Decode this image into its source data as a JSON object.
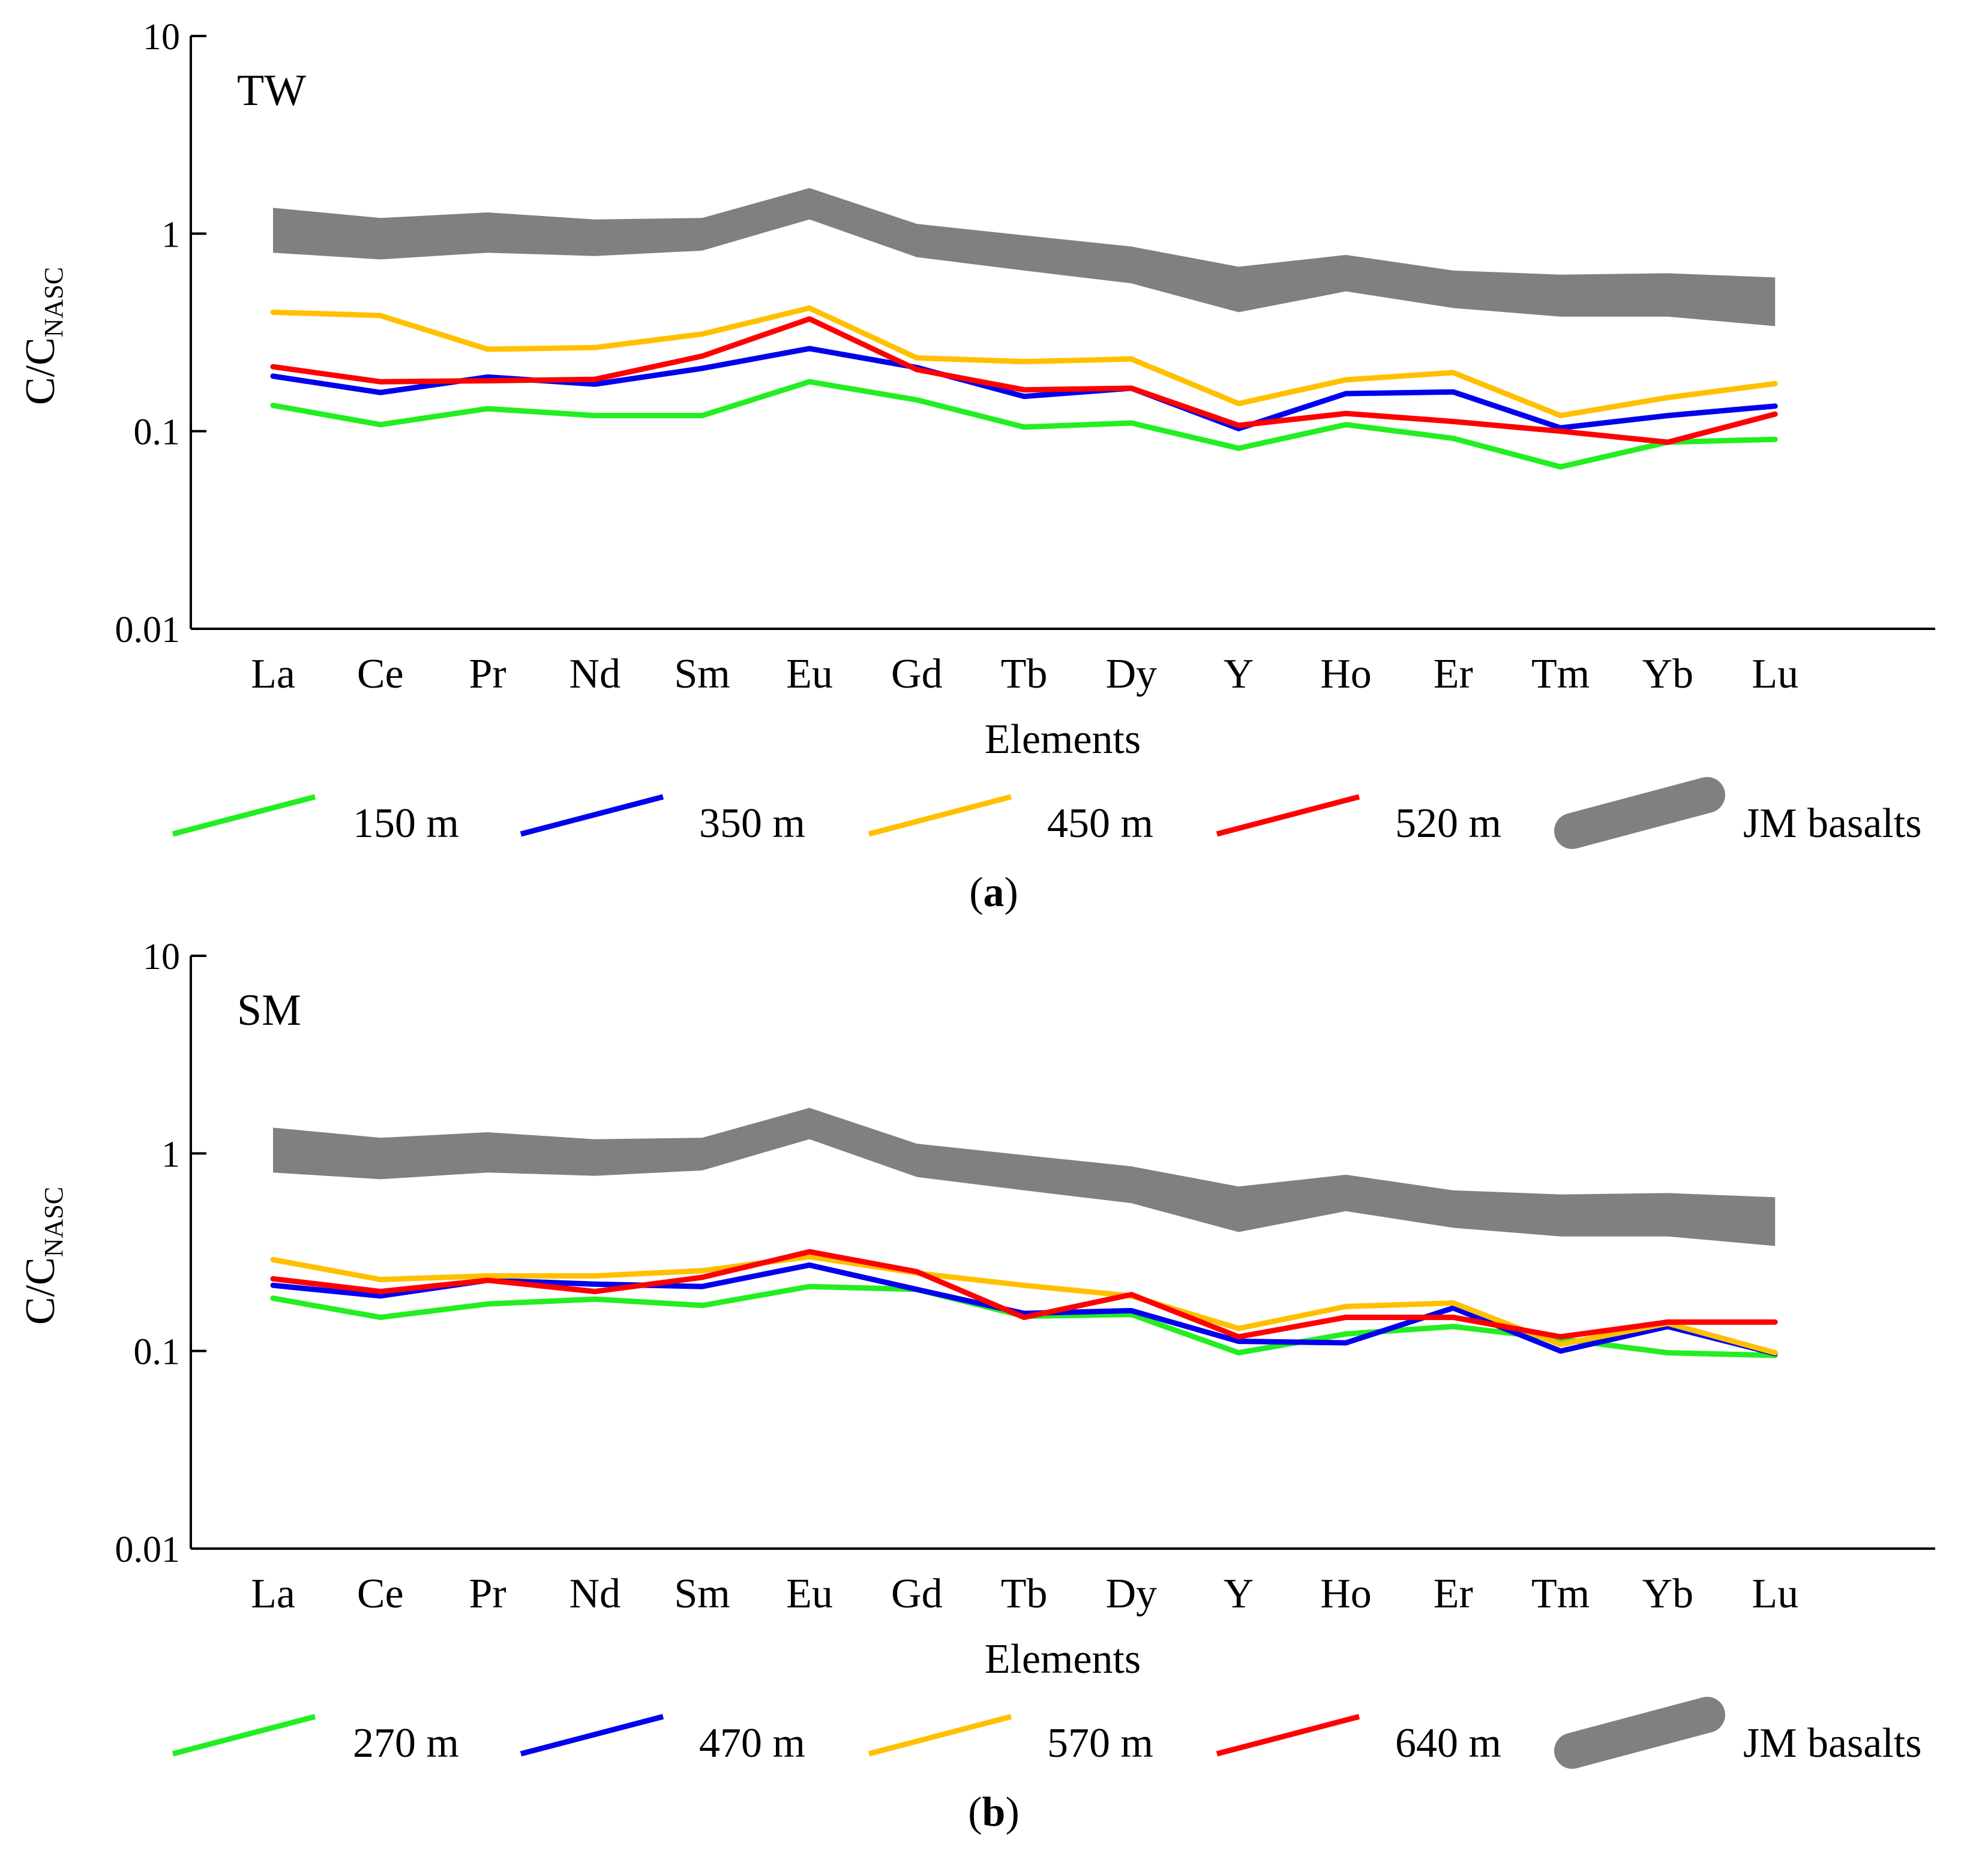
{
  "chart_data": [
    {
      "type": "line",
      "y_scale": "log",
      "panel_label": "TW",
      "caption_letter": "a",
      "xlabel": "Elements",
      "ylabel_main": "C/C",
      "ylabel_sub": "NASC",
      "ylim": [
        0.01,
        10
      ],
      "y_ticks": [
        {
          "value": 10,
          "label": "10"
        },
        {
          "value": 1,
          "label": "1"
        },
        {
          "value": 0.1,
          "label": "0.1"
        },
        {
          "value": 0.01,
          "label": "0.01"
        }
      ],
      "categories": [
        "La",
        "Ce",
        "Pr",
        "Nd",
        "Sm",
        "Eu",
        "Gd",
        "Tb",
        "Dy",
        "Y",
        "Ho",
        "Er",
        "Tm",
        "Yb",
        "Lu"
      ],
      "band": {
        "name": "JM basalts",
        "color": "#808080",
        "upper": [
          1.35,
          1.2,
          1.28,
          1.18,
          1.2,
          1.7,
          1.12,
          0.98,
          0.86,
          0.68,
          0.78,
          0.65,
          0.62,
          0.63,
          0.6
        ],
        "lower": [
          0.8,
          0.74,
          0.8,
          0.77,
          0.82,
          1.18,
          0.76,
          0.65,
          0.56,
          0.4,
          0.51,
          0.42,
          0.38,
          0.38,
          0.34
        ]
      },
      "series": [
        {
          "name": "150 m",
          "color": "#22ee22",
          "values": [
            0.135,
            0.108,
            0.13,
            0.12,
            0.12,
            0.178,
            0.144,
            0.105,
            0.11,
            0.082,
            0.108,
            0.092,
            0.066,
            0.088,
            0.091
          ]
        },
        {
          "name": "350 m",
          "color": "#0000ee",
          "values": [
            0.19,
            0.157,
            0.188,
            0.173,
            0.208,
            0.262,
            0.21,
            0.15,
            0.165,
            0.103,
            0.155,
            0.158,
            0.104,
            0.12,
            0.134
          ]
        },
        {
          "name": "450 m",
          "color": "#ffc000",
          "values": [
            0.4,
            0.385,
            0.26,
            0.265,
            0.31,
            0.42,
            0.235,
            0.225,
            0.232,
            0.138,
            0.182,
            0.198,
            0.12,
            0.148,
            0.174
          ]
        },
        {
          "name": "520 m",
          "color": "#ff0000",
          "values": [
            0.212,
            0.178,
            0.18,
            0.183,
            0.24,
            0.37,
            0.205,
            0.162,
            0.165,
            0.107,
            0.123,
            0.112,
            0.1,
            0.088,
            0.122
          ]
        }
      ]
    },
    {
      "type": "line",
      "y_scale": "log",
      "panel_label": "SM",
      "caption_letter": "b",
      "xlabel": "Elements",
      "ylabel_main": "C/C",
      "ylabel_sub": "NASC",
      "ylim": [
        0.01,
        10
      ],
      "y_ticks": [
        {
          "value": 10,
          "label": "10"
        },
        {
          "value": 1,
          "label": "1"
        },
        {
          "value": 0.1,
          "label": "0.1"
        },
        {
          "value": 0.01,
          "label": "0.01"
        }
      ],
      "categories": [
        "La",
        "Ce",
        "Pr",
        "Nd",
        "Sm",
        "Eu",
        "Gd",
        "Tb",
        "Dy",
        "Y",
        "Ho",
        "Er",
        "Tm",
        "Yb",
        "Lu"
      ],
      "band": {
        "name": "JM basalts",
        "color": "#808080",
        "upper": [
          1.35,
          1.2,
          1.28,
          1.18,
          1.2,
          1.7,
          1.12,
          0.98,
          0.86,
          0.68,
          0.78,
          0.65,
          0.62,
          0.63,
          0.6
        ],
        "lower": [
          0.8,
          0.74,
          0.8,
          0.77,
          0.82,
          1.18,
          0.76,
          0.65,
          0.56,
          0.4,
          0.51,
          0.42,
          0.38,
          0.38,
          0.34
        ]
      },
      "series": [
        {
          "name": "270 m",
          "color": "#22ee22",
          "values": [
            0.185,
            0.148,
            0.173,
            0.183,
            0.17,
            0.212,
            0.205,
            0.15,
            0.153,
            0.098,
            0.122,
            0.133,
            0.115,
            0.098,
            0.095
          ]
        },
        {
          "name": "470 m",
          "color": "#0000ee",
          "values": [
            0.215,
            0.19,
            0.228,
            0.218,
            0.212,
            0.272,
            0.205,
            0.155,
            0.16,
            0.112,
            0.11,
            0.165,
            0.1,
            0.133,
            0.097
          ]
        },
        {
          "name": "570 m",
          "color": "#ffc000",
          "values": [
            0.29,
            0.23,
            0.24,
            0.24,
            0.255,
            0.3,
            0.248,
            0.215,
            0.19,
            0.13,
            0.168,
            0.175,
            0.108,
            0.138,
            0.098
          ]
        },
        {
          "name": "640 m",
          "color": "#ff0000",
          "values": [
            0.232,
            0.2,
            0.228,
            0.2,
            0.236,
            0.318,
            0.252,
            0.148,
            0.193,
            0.118,
            0.148,
            0.148,
            0.118,
            0.14,
            0.14
          ]
        }
      ]
    }
  ]
}
